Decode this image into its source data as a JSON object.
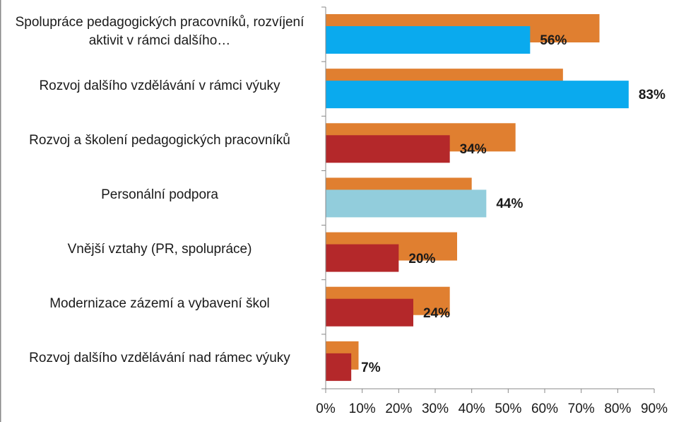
{
  "chart_data": {
    "type": "bar",
    "orientation": "horizontal",
    "categories": [
      "Spolupráce pedagogických pracovníků, rozvíjení aktivit v rámci dalšího…",
      "Rozvoj dalšího vzdělávání v rámci výuky",
      "Rozvoj a školení pedagogických pracovníků",
      "Personální podpora",
      "Vnější vztahy (PR, spolupráce)",
      "Modernizace zázemí a vybavení škol",
      "Rozvoj dalšího vzdělávání nad rámec výuky"
    ],
    "series": [
      {
        "color": "#e07f30",
        "values": [
          75,
          65,
          52,
          40,
          36,
          34,
          9
        ]
      },
      {
        "colors": [
          "#0aaaee",
          "#0aaaee",
          "#b4282a",
          "#92cddc",
          "#b4282a",
          "#b4282a",
          "#b4282a"
        ],
        "values": [
          56,
          83,
          34,
          44,
          20,
          24,
          7
        ],
        "value_labels": [
          "56%",
          "83%",
          "34%",
          "44%",
          "20%",
          "24%",
          "7%"
        ]
      }
    ],
    "xlim": [
      0,
      90
    ],
    "xticks": [
      {
        "value": 0,
        "label": "0%"
      },
      {
        "value": 10,
        "label": "10%"
      },
      {
        "value": 20,
        "label": "20%"
      },
      {
        "value": 30,
        "label": "30%"
      },
      {
        "value": 40,
        "label": "40%"
      },
      {
        "value": 50,
        "label": "50%"
      },
      {
        "value": 60,
        "label": "60%"
      },
      {
        "value": 70,
        "label": "70%"
      },
      {
        "value": 80,
        "label": "80%"
      },
      {
        "value": 90,
        "label": "90%"
      }
    ]
  }
}
